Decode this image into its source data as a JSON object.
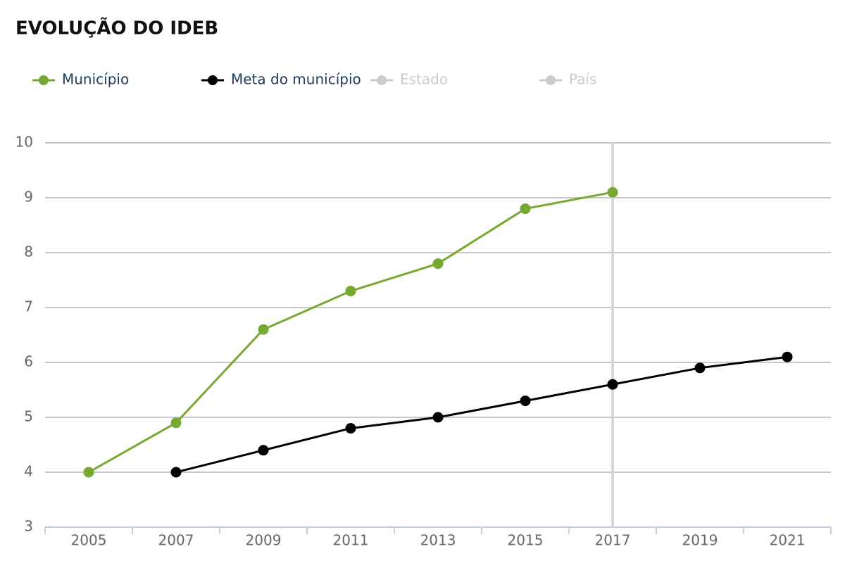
{
  "chart_data": {
    "type": "line",
    "title": "EVOLUÇÃO DO IDEB",
    "categories": [
      "2005",
      "2007",
      "2009",
      "2011",
      "2013",
      "2015",
      "2017",
      "2019",
      "2021"
    ],
    "series": [
      {
        "name": "Município",
        "color": "#76a832",
        "values": [
          4.0,
          4.9,
          6.6,
          7.3,
          7.8,
          8.8,
          9.1,
          null,
          null
        ]
      },
      {
        "name": "Meta do município",
        "color": "#000000",
        "values": [
          null,
          4.0,
          4.4,
          4.8,
          5.0,
          5.3,
          5.6,
          5.9,
          6.1
        ]
      },
      {
        "name": "Estado",
        "color": "#cccccc",
        "hidden": true,
        "values": [
          null,
          null,
          null,
          null,
          null,
          null,
          null,
          null,
          null
        ]
      },
      {
        "name": "País",
        "color": "#cccccc",
        "hidden": true,
        "values": [
          null,
          null,
          null,
          null,
          null,
          null,
          null,
          null,
          null
        ]
      }
    ],
    "ylim": [
      3,
      10
    ],
    "yticks": [
      3,
      4,
      5,
      6,
      7,
      8,
      9,
      10
    ],
    "grid": true,
    "legend": "top"
  }
}
